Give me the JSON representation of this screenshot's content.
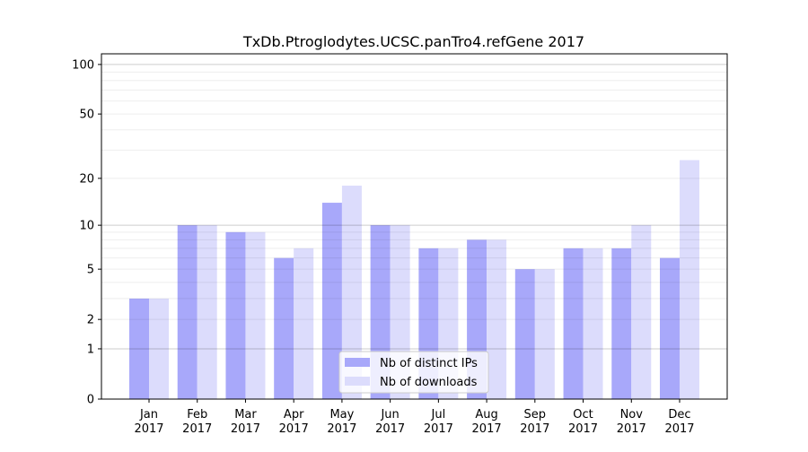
{
  "chart_data": {
    "type": "bar",
    "title": "TxDb.Ptroglodytes.UCSC.panTro4.refGene 2017",
    "xlabel": "",
    "ylabel": "",
    "yscale": "symlog",
    "ylim": [
      0,
      116
    ],
    "yticks": [
      0,
      1,
      2,
      5,
      10,
      20,
      50,
      100
    ],
    "grid": true,
    "legend_position": "bottom-center",
    "categories": [
      "Jan\n2017",
      "Feb\n2017",
      "Mar\n2017",
      "Apr\n2017",
      "May\n2017",
      "Jun\n2017",
      "Jul\n2017",
      "Aug\n2017",
      "Sep\n2017",
      "Oct\n2017",
      "Nov\n2017",
      "Dec\n2017"
    ],
    "series": [
      {
        "name": "Nb of distinct IPs",
        "color": "#a8a8fa",
        "values": [
          3,
          10,
          9,
          6,
          14,
          10,
          7,
          8,
          5,
          7,
          7,
          6
        ]
      },
      {
        "name": "Nb of downloads",
        "color": "#dcdcfc",
        "values": [
          3,
          10,
          9,
          7,
          18,
          10,
          7,
          8,
          5,
          7,
          10,
          26
        ]
      }
    ]
  }
}
